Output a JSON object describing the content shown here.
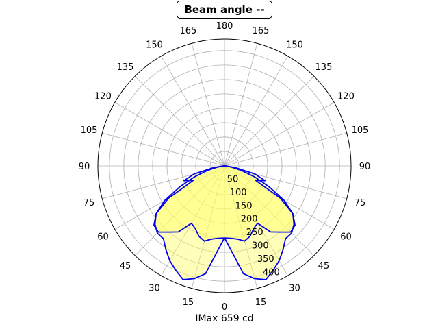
{
  "title": "Beam angle --",
  "chart_data": {
    "type": "polar",
    "title": "Beam angle --",
    "xlabel": "IMax 659 cd",
    "angle_tick_labels": [
      "0",
      "15",
      "30",
      "45",
      "60",
      "75",
      "90",
      "105",
      "120",
      "135",
      "150",
      "165",
      "180",
      "165",
      "150",
      "135",
      "120",
      "105",
      "90",
      "75",
      "60",
      "45",
      "30",
      "15"
    ],
    "radial_tick_labels": [
      "50",
      "100",
      "150",
      "200",
      "250",
      "300",
      "350",
      "400"
    ],
    "radial_ticks": [
      50,
      100,
      150,
      200,
      250,
      300,
      350,
      400
    ],
    "rlim": [
      0,
      440
    ],
    "zero_location": "bottom",
    "grid": true,
    "colors": {
      "line": "#0000ee",
      "fill": "#ffff66",
      "grid": "#b0b0b0"
    },
    "series": [
      {
        "values_deg": [
          0,
          5,
          10,
          15,
          20,
          25,
          30,
          35,
          40,
          45,
          50,
          55,
          60,
          65,
          70,
          75,
          80,
          85,
          90
        ],
        "values_cd": [
          250,
          300,
          380,
          405,
          420,
          400,
          380,
          355,
          330,
          330,
          315,
          290,
          240,
          170,
          110,
          60,
          25,
          5,
          0
        ]
      },
      {
        "values_deg": [
          0,
          5,
          10,
          15,
          20,
          25,
          30,
          35,
          40,
          45,
          50,
          55,
          60,
          65,
          70,
          75,
          80,
          85,
          90
        ],
        "values_cd": [
          250,
          252,
          258,
          270,
          260,
          240,
          230,
          280,
          300,
          325,
          320,
          290,
          225,
          120,
          150,
          110,
          45,
          10,
          0
        ]
      }
    ]
  }
}
